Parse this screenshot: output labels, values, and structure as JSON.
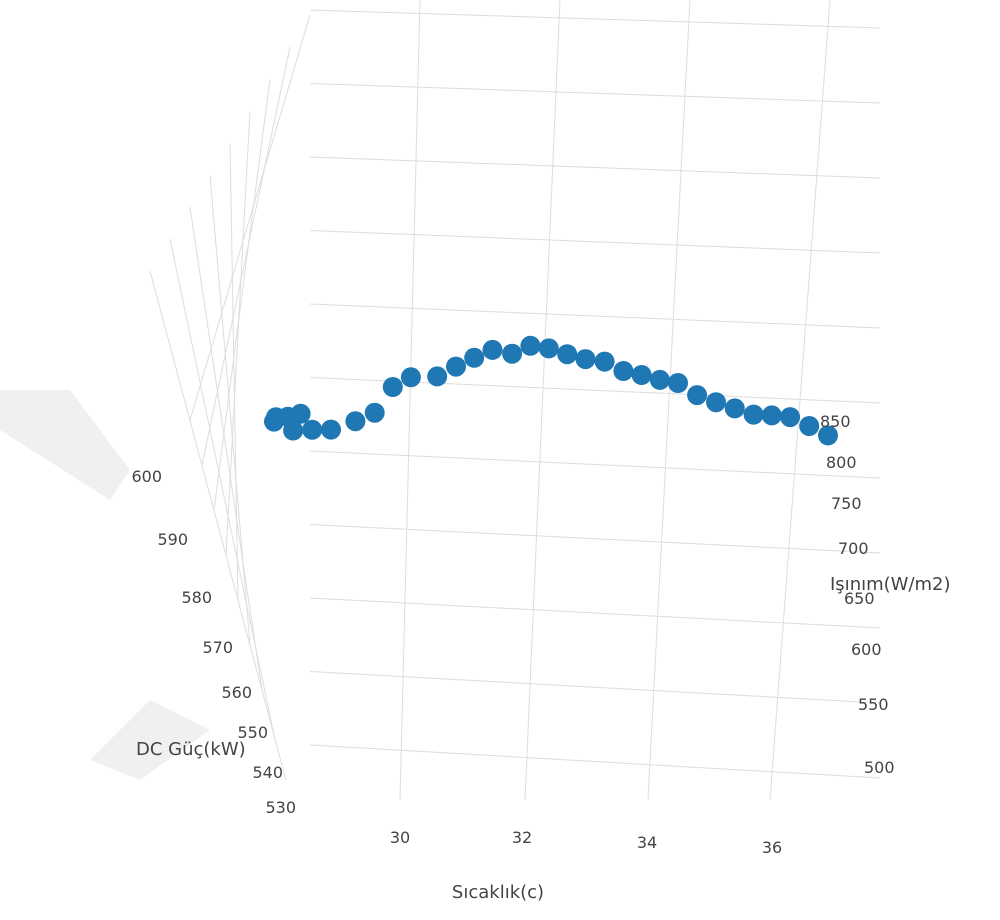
{
  "chart_data": {
    "type": "scatter",
    "title": "",
    "marker_color": "#1f77b4",
    "grid": true,
    "axes": {
      "x": {
        "label": "Sıcaklık(c)",
        "ticks": [
          "30",
          "32",
          "34",
          "36"
        ]
      },
      "y": {
        "label": "Işınım(W/m2)",
        "ticks": [
          "500",
          "550",
          "600",
          "650",
          "700",
          "750",
          "800",
          "850"
        ]
      },
      "z": {
        "label": "DC Güç(kW)",
        "ticks": [
          "530",
          "540",
          "550",
          "560",
          "570",
          "580",
          "590",
          "600"
        ]
      }
    },
    "series": [
      {
        "x": [
          28.0,
          28.2,
          28.4,
          28.0,
          28.3,
          28.6,
          28.9,
          29.3,
          29.6,
          29.9,
          30.2,
          30.6,
          30.9,
          31.2,
          31.5,
          31.8,
          32.1,
          32.4,
          32.7,
          33.0,
          33.3,
          33.6,
          33.9,
          34.2,
          34.5,
          34.8,
          35.1,
          35.4,
          35.7,
          36.0,
          36.3,
          36.6,
          36.9
        ],
        "y": [
          850,
          845,
          848,
          830,
          835,
          840,
          842,
          838,
          845,
          840,
          835,
          850,
          852,
          848,
          845,
          855,
          852,
          850,
          848,
          845,
          850,
          852,
          848,
          845,
          840,
          845,
          848,
          850,
          852,
          848,
          845,
          850,
          852
        ],
        "z": [
          574,
          573,
          575,
          567,
          566,
          568,
          569,
          571,
          576,
          583,
          585,
          590,
          594,
          596,
          598,
          600,
          602,
          601,
          599,
          597,
          598,
          596,
          594,
          592,
          590,
          588,
          587,
          586,
          585,
          584,
          583,
          582,
          580
        ]
      }
    ]
  }
}
